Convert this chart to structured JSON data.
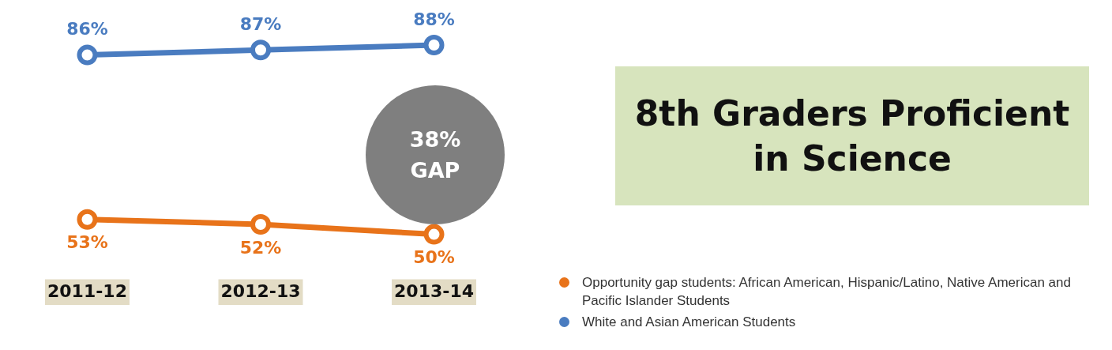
{
  "chart_data": {
    "type": "line",
    "title": "8th Graders Proficient in Science",
    "categories": [
      "2011-12",
      "2012-13",
      "2013-14"
    ],
    "series": [
      {
        "name": "Opportunity gap students: African American, Hispanic/Latino, Native American and Pacific Islander Students",
        "color": "#e8731a",
        "values": [
          53,
          52,
          50
        ],
        "value_labels": [
          "53%",
          "52%",
          "50%"
        ]
      },
      {
        "name": "White and Asian American Students",
        "color": "#4a7cc0",
        "values": [
          86,
          87,
          88
        ],
        "value_labels": [
          "86%",
          "87%",
          "88%"
        ]
      }
    ],
    "annotations": [
      "38% GAP"
    ],
    "marker": "circle",
    "legend": "bottom right",
    "grid": false
  }
}
